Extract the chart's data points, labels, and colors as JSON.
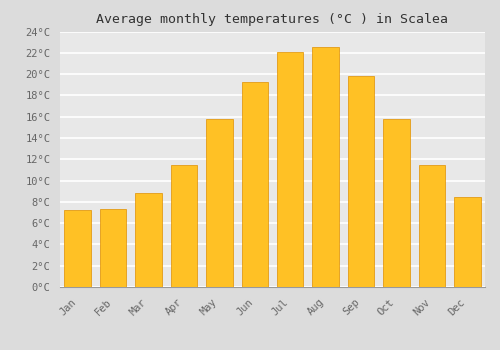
{
  "title": "Average monthly temperatures (°C ) in Scalea",
  "months": [
    "Jan",
    "Feb",
    "Mar",
    "Apr",
    "May",
    "Jun",
    "Jul",
    "Aug",
    "Sep",
    "Oct",
    "Nov",
    "Dec"
  ],
  "values": [
    7.2,
    7.3,
    8.8,
    11.5,
    15.8,
    19.3,
    22.1,
    22.5,
    19.8,
    15.8,
    11.5,
    8.5
  ],
  "bar_color_top": "#FFC125",
  "bar_color_bottom": "#F5A800",
  "bar_edge_color": "#E09000",
  "background_color": "#DCDCDC",
  "plot_bg_color": "#E8E8E8",
  "grid_color": "#FFFFFF",
  "title_color": "#333333",
  "tick_color": "#666666",
  "ylim": [
    0,
    24
  ],
  "ytick_step": 2,
  "title_fontsize": 9.5,
  "tick_fontsize": 7.5,
  "font_family": "monospace",
  "bar_width": 0.75,
  "figsize": [
    5.0,
    3.5
  ],
  "dpi": 100
}
